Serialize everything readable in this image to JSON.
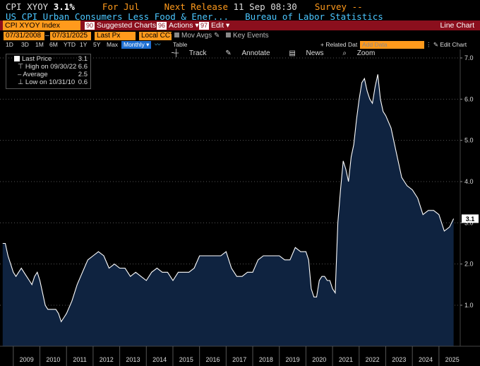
{
  "header": {
    "ticker": "CPI XYOY",
    "value": "3.1%",
    "period_label": "For Jul",
    "release_label": "Next Release",
    "release_time": "11 Sep 08:30",
    "survey_label": "Survey --",
    "description": "US CPI Urban Consumers Less Food & Ener...",
    "source": "Bureau of Labor Statistics"
  },
  "menubar": {
    "security": "CPI XYOY Index",
    "suggested_num": "90",
    "suggested_label": "Suggested Charts",
    "actions_num": "96",
    "actions_label": "Actions",
    "edit_num": "97",
    "edit_label": "Edit",
    "chart_type": "Line Chart"
  },
  "controls": {
    "start_date": "07/31/2008",
    "end_date": "07/31/2025",
    "field": "Last Px",
    "currency": "Local CCY",
    "mov_avgs": "Mov Avgs",
    "key_events": "Key Events"
  },
  "ranges": {
    "items": [
      "1D",
      "3D",
      "1M",
      "6M",
      "YTD",
      "1Y",
      "5Y",
      "Max"
    ],
    "frequency": "Monthly",
    "table": "Table",
    "related": "+ Related Dat",
    "add_data": "Add Data",
    "edit_chart": "Edit Chart"
  },
  "toolbar": {
    "track": "Track",
    "annotate": "Annotate",
    "news": "News",
    "zoom": "Zoom"
  },
  "legend": {
    "last_label": "Last Price",
    "last_value": "3.1",
    "high_label": "High on 09/30/22",
    "high_value": "6.6",
    "avg_label": "Average",
    "avg_value": "2.5",
    "low_label": "Low on 10/31/10",
    "low_value": "0.6"
  },
  "colors": {
    "header_orange": "#ff9a1c",
    "header_blue": "#4dc7ff",
    "menu_red": "#8b0f1d",
    "area_fill": "#0f2340",
    "line": "#ffffff"
  },
  "chart_data": {
    "type": "area",
    "title": "CPI XYOY Index",
    "ylabel": "",
    "xlabel": "",
    "ylim": [
      0,
      7.0
    ],
    "y_ticks": [
      "1.0",
      "2.0",
      "3.0",
      "4.0",
      "5.0",
      "6.0",
      "7.0"
    ],
    "x_ticks": [
      "2009",
      "2010",
      "2011",
      "2012",
      "2013",
      "2014",
      "2015",
      "2016",
      "2017",
      "2018",
      "2019",
      "2020",
      "2021",
      "2022",
      "2023",
      "2024",
      "2025"
    ],
    "last_label": "3.1",
    "series": [
      {
        "name": "Last Price",
        "x": [
          2008.6,
          2008.7,
          2008.8,
          2008.9,
          2009.0,
          2009.1,
          2009.2,
          2009.3,
          2009.4,
          2009.5,
          2009.6,
          2009.7,
          2009.8,
          2009.9,
          2010.0,
          2010.1,
          2010.2,
          2010.3,
          2010.4,
          2010.5,
          2010.6,
          2010.7,
          2010.8,
          2010.9,
          2011.0,
          2011.2,
          2011.4,
          2011.6,
          2011.8,
          2012.0,
          2012.2,
          2012.4,
          2012.6,
          2012.8,
          2013.0,
          2013.2,
          2013.4,
          2013.6,
          2013.8,
          2014.0,
          2014.2,
          2014.4,
          2014.6,
          2014.8,
          2015.0,
          2015.2,
          2015.4,
          2015.6,
          2015.8,
          2016.0,
          2016.2,
          2016.4,
          2016.6,
          2016.8,
          2017.0,
          2017.2,
          2017.4,
          2017.6,
          2017.8,
          2018.0,
          2018.2,
          2018.4,
          2018.6,
          2018.8,
          2019.0,
          2019.2,
          2019.4,
          2019.6,
          2019.8,
          2020.0,
          2020.1,
          2020.2,
          2020.3,
          2020.4,
          2020.5,
          2020.6,
          2020.7,
          2020.8,
          2020.9,
          2021.0,
          2021.1,
          2021.2,
          2021.3,
          2021.4,
          2021.5,
          2021.6,
          2021.7,
          2021.8,
          2021.9,
          2022.0,
          2022.1,
          2022.2,
          2022.3,
          2022.4,
          2022.5,
          2022.6,
          2022.7,
          2022.8,
          2022.9,
          2023.0,
          2023.2,
          2023.4,
          2023.6,
          2023.8,
          2024.0,
          2024.2,
          2024.4,
          2024.6,
          2024.8,
          2025.0,
          2025.2,
          2025.4,
          2025.55
        ],
        "values": [
          2.5,
          2.5,
          2.2,
          2.0,
          1.8,
          1.7,
          1.8,
          1.9,
          1.8,
          1.7,
          1.6,
          1.5,
          1.7,
          1.8,
          1.6,
          1.3,
          1.0,
          0.9,
          0.9,
          0.9,
          0.9,
          0.8,
          0.6,
          0.7,
          0.8,
          1.1,
          1.5,
          1.8,
          2.1,
          2.2,
          2.3,
          2.2,
          1.9,
          2.0,
          1.9,
          1.9,
          1.7,
          1.8,
          1.7,
          1.6,
          1.8,
          1.9,
          1.8,
          1.8,
          1.6,
          1.8,
          1.8,
          1.8,
          1.9,
          2.2,
          2.2,
          2.2,
          2.2,
          2.2,
          2.3,
          1.9,
          1.7,
          1.7,
          1.8,
          1.8,
          2.1,
          2.2,
          2.2,
          2.2,
          2.2,
          2.1,
          2.1,
          2.4,
          2.3,
          2.3,
          2.1,
          1.4,
          1.2,
          1.2,
          1.6,
          1.7,
          1.7,
          1.6,
          1.6,
          1.4,
          1.3,
          3.0,
          3.8,
          4.5,
          4.3,
          4.0,
          4.6,
          4.9,
          5.5,
          6.0,
          6.4,
          6.5,
          6.2,
          6.0,
          5.9,
          6.3,
          6.6,
          6.0,
          5.7,
          5.6,
          5.3,
          4.7,
          4.1,
          3.9,
          3.8,
          3.6,
          3.2,
          3.3,
          3.3,
          3.2,
          2.8,
          2.9,
          3.1
        ]
      }
    ]
  }
}
